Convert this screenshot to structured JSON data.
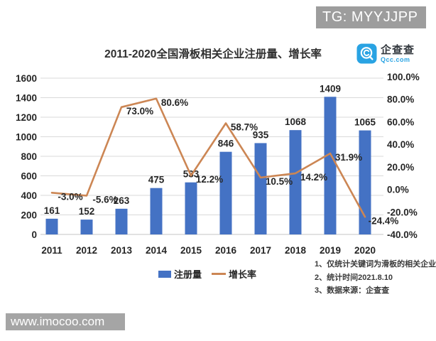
{
  "overlays": {
    "tg_text": "TG: MYYJJPP",
    "watermark_text": "www.imocoo.com"
  },
  "logo": {
    "name": "企查查",
    "domain": "Qcc.com",
    "brand_color": "#29a3e3"
  },
  "chart_data": {
    "type": "bar",
    "combo": "bar+line",
    "title": "2011-2020全国滑板相关企业注册量、增长率",
    "categories": [
      "2011",
      "2012",
      "2013",
      "2014",
      "2015",
      "2016",
      "2017",
      "2018",
      "2019",
      "2020"
    ],
    "series": [
      {
        "name": "注册量",
        "type": "bar",
        "color": "#4472c4",
        "values": [
          161,
          152,
          263,
          475,
          533,
          846,
          935,
          1068,
          1409,
          1065
        ],
        "labels": [
          "161",
          "152",
          "263",
          "475",
          "533",
          "846",
          "935",
          "1068",
          "1409",
          "1065"
        ]
      },
      {
        "name": "增长率",
        "type": "line",
        "color": "#cc8654",
        "values": [
          -3.0,
          -5.6,
          73.0,
          80.6,
          12.2,
          58.7,
          10.5,
          14.2,
          31.9,
          -24.4
        ],
        "labels": [
          "-3.0%",
          "-5.6%",
          "73.0%",
          "80.6%",
          "12.2%",
          "58.7%",
          "10.5%",
          "14.2%",
          "31.9%",
          "-24.4%"
        ]
      }
    ],
    "left_axis": {
      "min": 0,
      "max": 1600,
      "step": 200,
      "ticks": [
        "0",
        "200",
        "400",
        "600",
        "800",
        "1000",
        "1200",
        "1400",
        "1600"
      ]
    },
    "right_axis": {
      "min": -40,
      "max": 100,
      "step": 20,
      "ticks": [
        "-40.0%",
        "-20.0%",
        "0.0%",
        "20.0%",
        "40.0%",
        "60.0%",
        "80.0%",
        "100.0%"
      ]
    },
    "legend": [
      "注册量",
      "增长率"
    ],
    "legend_position": "bottom",
    "grid": true,
    "grid_color": "#d9d9d9",
    "text_color": "#262626"
  },
  "footnotes": [
    "1、仅统计关键词为滑板的相关企业",
    "2、统计时间2021.8.10",
    "3、数据来源：企查查"
  ]
}
